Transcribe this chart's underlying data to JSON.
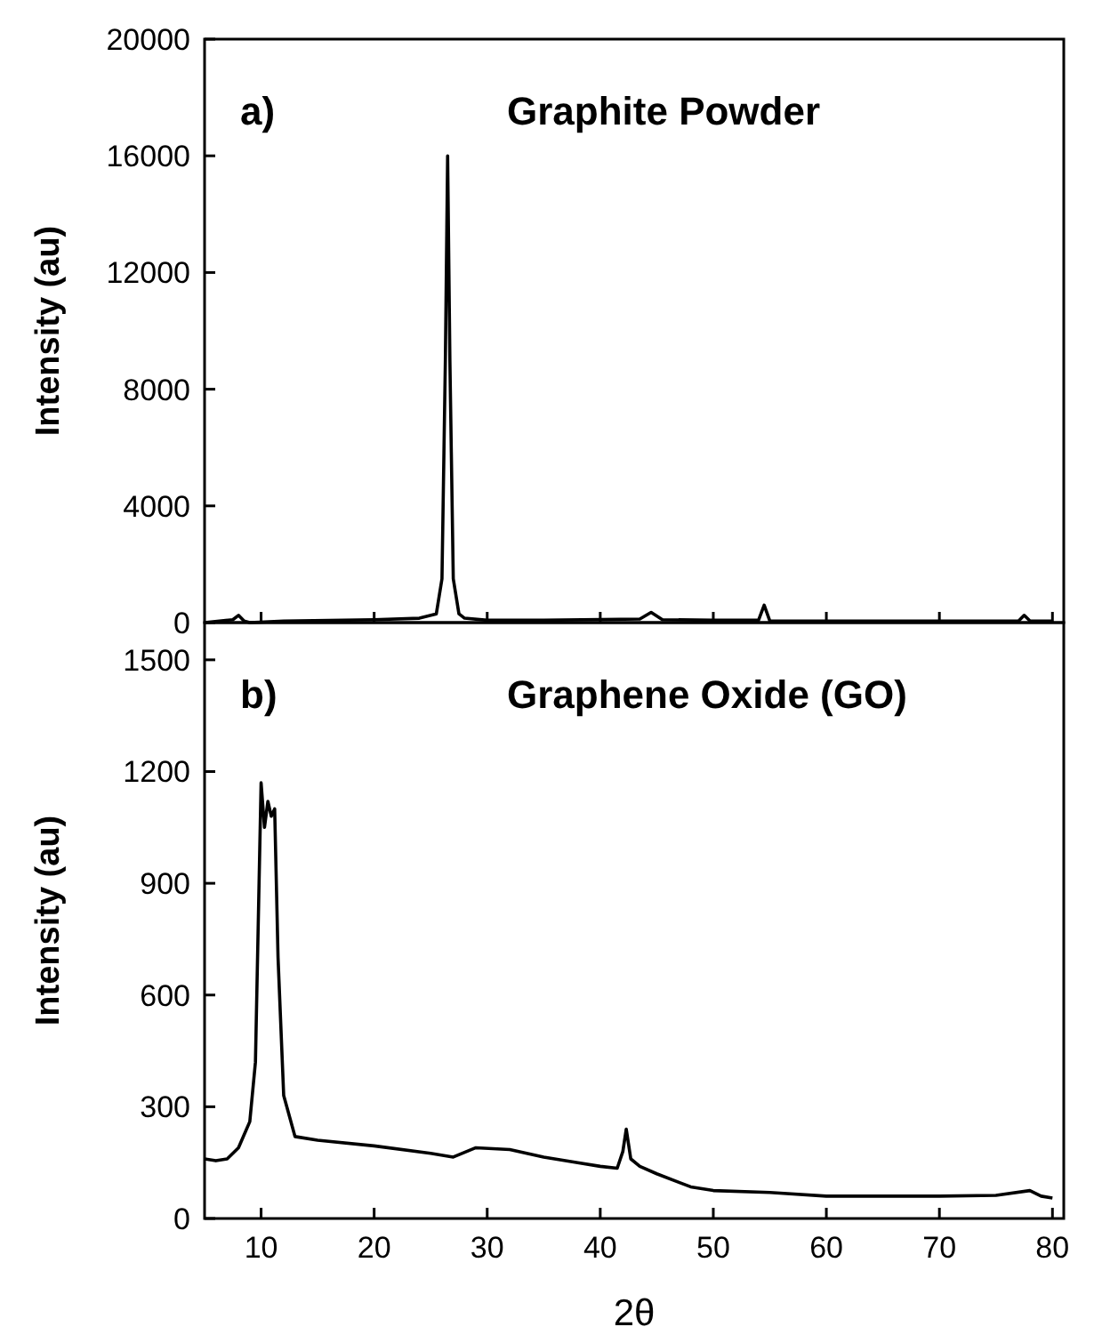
{
  "chart_data": [
    {
      "type": "line",
      "title": "Graphite Powder",
      "annotations": [
        "a)"
      ],
      "ylabel": "Intensity (au)",
      "xlim": [
        5,
        81
      ],
      "xticks": [
        10,
        20,
        30,
        40,
        50,
        60,
        70,
        80
      ],
      "ylim": [
        0,
        20000
      ],
      "yticks": [
        0,
        4000,
        8000,
        12000,
        16000,
        20000
      ],
      "tick_labels": "y",
      "grid": false,
      "series": [
        {
          "color": "#000000",
          "x": [
            5,
            7.5,
            8,
            8.5,
            9,
            12,
            20,
            24,
            25.5,
            26,
            26.3,
            26.5,
            26.7,
            27,
            27.5,
            28,
            30,
            35,
            43.5,
            44.5,
            45.5,
            50,
            54,
            54.5,
            55,
            60,
            70,
            77,
            77.5,
            78,
            80
          ],
          "values": [
            0,
            100,
            250,
            50,
            0,
            50,
            100,
            150,
            300,
            1500,
            9000,
            16000,
            9000,
            1500,
            300,
            150,
            80,
            80,
            120,
            350,
            100,
            80,
            80,
            600,
            60,
            50,
            50,
            50,
            250,
            60,
            50
          ]
        }
      ]
    },
    {
      "type": "line",
      "title": "Graphene Oxide (GO)",
      "annotations": [
        "b)"
      ],
      "xlabel": "2θ",
      "ylabel": "Intensity (au)",
      "xlim": [
        5,
        81
      ],
      "xticks": [
        10,
        20,
        30,
        40,
        50,
        60,
        70,
        80
      ],
      "ylim": [
        0,
        1600
      ],
      "yticks": [
        0,
        300,
        600,
        900,
        1200,
        1500
      ],
      "grid": false,
      "series": [
        {
          "color": "#000000",
          "x": [
            5,
            6,
            7,
            8,
            9,
            9.5,
            10,
            10.3,
            10.6,
            10.9,
            11.2,
            11.5,
            12,
            13,
            15,
            20,
            25,
            27,
            29,
            32,
            35,
            38,
            40,
            41.5,
            42,
            42.3,
            42.7,
            43.5,
            45,
            48,
            50,
            55,
            60,
            65,
            70,
            75,
            78,
            79,
            80
          ],
          "values": [
            160,
            155,
            160,
            190,
            260,
            420,
            1170,
            1050,
            1120,
            1080,
            1100,
            700,
            330,
            220,
            210,
            195,
            175,
            165,
            190,
            185,
            165,
            150,
            140,
            135,
            180,
            240,
            160,
            140,
            120,
            85,
            75,
            70,
            60,
            60,
            60,
            62,
            75,
            60,
            55
          ]
        }
      ]
    }
  ]
}
